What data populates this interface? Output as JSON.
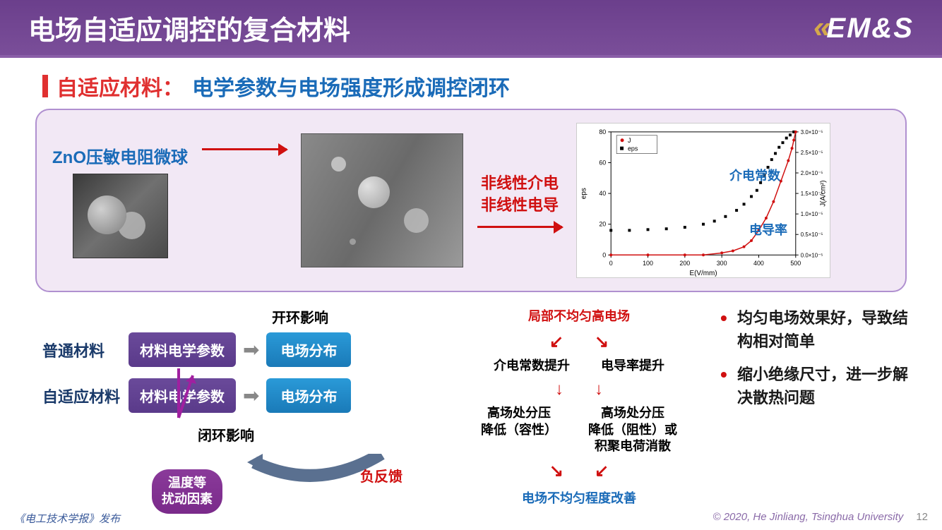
{
  "header": {
    "title": "电场自适应调控的复合材料",
    "logo_text": "EM&S"
  },
  "subtitle": {
    "red": "自适应材料：",
    "blue": "电学参数与电场强度形成调控闭环"
  },
  "panel": {
    "zno_label": "ZnO压敏电阻微球",
    "nonlinear_line1": "非线性介电",
    "nonlinear_line2": "非线性电导",
    "chart": {
      "legend": [
        "J",
        "eps"
      ],
      "xlabel": "E(V/mm)",
      "ylabel_left": "eps",
      "ylabel_right": "J(A/cm²)",
      "label_dielectric": "介电常数",
      "label_conductivity": "电导率",
      "xlim": [
        0,
        500
      ],
      "xtick_step": 100,
      "ylim_left": [
        0,
        80
      ],
      "ytick_left_step": 20,
      "ylim_right": [
        0,
        3e-05
      ],
      "eps_data": {
        "x": [
          0,
          50,
          100,
          150,
          200,
          250,
          280,
          310,
          340,
          360,
          380,
          395,
          405,
          415,
          425,
          435,
          445,
          455,
          465,
          475,
          485,
          495
        ],
        "y": [
          16,
          16,
          16.5,
          17,
          18,
          20,
          22,
          25,
          29,
          33,
          38,
          42,
          47,
          52,
          57,
          62,
          66,
          70,
          73,
          76,
          78,
          80
        ]
      },
      "J_data": {
        "x": [
          0,
          100,
          200,
          250,
          300,
          330,
          360,
          380,
          400,
          420,
          440,
          460,
          480,
          490,
          495,
          500
        ],
        "y": [
          0,
          0,
          0,
          0,
          5e-07,
          1e-06,
          2e-06,
          3.5e-06,
          6e-06,
          9e-06,
          1.3e-05,
          1.8e-05,
          2.3e-05,
          2.6e-05,
          2.8e-05,
          3e-05
        ]
      },
      "colors": {
        "eps": "#000000",
        "J": "#d01010",
        "grid": "#ddd",
        "axis": "#000"
      }
    }
  },
  "diagram": {
    "open_loop": "开环影响",
    "close_loop": "闭环影响",
    "neg_feedback": "负反馈",
    "normal_material": "普通材料",
    "adaptive_material": "自适应材料",
    "elec_param": "材料电学参数",
    "field_dist": "电场分布",
    "temp_factor_l1": "温度等",
    "temp_factor_l2": "扰动因素"
  },
  "loop": {
    "top": "局部不均匀高电场",
    "left1": "介电常数提升",
    "right1": "电导率提升",
    "left2_l1": "高场处分压",
    "left2_l2": "降低（容性）",
    "right2_l1": "高场处分压",
    "right2_l2": "降低（阻性）或",
    "right2_l3": "积聚电荷消散",
    "bottom": "电场不均匀程度改善"
  },
  "bullets": {
    "b1": "均匀电场效果好，导致结构相对简单",
    "b2": "缩小绝缘尺寸，进一步解决散热问题"
  },
  "footer": {
    "left": "《电工技术学报》发布",
    "right": "© 2020, He Jinliang, Tsinghua University",
    "page": "12"
  }
}
